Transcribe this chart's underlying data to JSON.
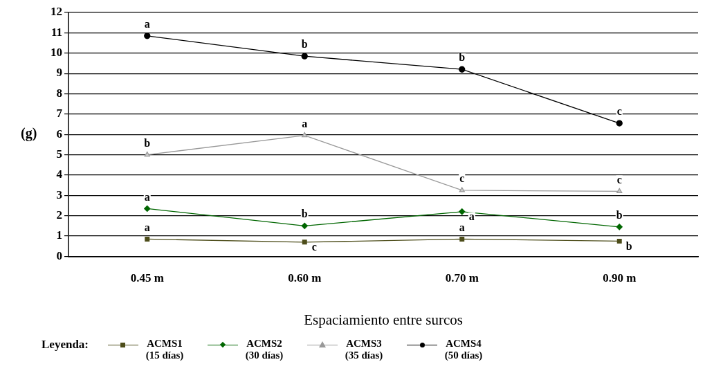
{
  "chart_data": {
    "type": "line",
    "xlabel": "Espaciamiento entre surcos",
    "ylabel": "(g)",
    "legend_title": "Leyenda:",
    "categories": [
      "0.45 m",
      "0.60 m",
      "0.70 m",
      "0.90 m"
    ],
    "series": [
      {
        "name": "ACMS1 (15 días)",
        "color": "#4d4d1a",
        "marker": "square",
        "values": [
          0.85,
          0.7,
          0.85,
          0.75
        ]
      },
      {
        "name": "ACMS2 (30 días)",
        "color": "#006600",
        "marker": "diamond",
        "values": [
          2.35,
          1.5,
          2.2,
          1.45
        ]
      },
      {
        "name": "ACMS3 (35 días)",
        "color": "#999999",
        "marker": "triangle",
        "values": [
          5.0,
          5.95,
          3.25,
          3.2
        ]
      },
      {
        "name": "ACMS4 (50 días)",
        "color": "#000000",
        "marker": "circle",
        "values": [
          10.85,
          9.85,
          9.2,
          6.55
        ]
      }
    ],
    "ylim": [
      0,
      12
    ],
    "yticks": [
      0,
      1,
      2,
      3,
      4,
      5,
      6,
      7,
      8,
      9,
      10,
      11,
      12
    ],
    "grid": "y",
    "legend": "bottom",
    "annotations": [
      {
        "text": "a",
        "x": "0.45 m",
        "y": 0.85
      },
      {
        "text": "c",
        "x": "0.60 m",
        "y": 0.7
      },
      {
        "text": "a",
        "x": "0.70 m",
        "y": 0.85
      },
      {
        "text": "b",
        "x": "0.90 m",
        "y": 0.75
      },
      {
        "text": "a",
        "x": "0.45 m",
        "y": 2.35
      },
      {
        "text": "b",
        "x": "0.60 m",
        "y": 1.5
      },
      {
        "text": "a",
        "x": "0.70 m",
        "y": 2.2
      },
      {
        "text": "b",
        "x": "0.90 m",
        "y": 1.45
      },
      {
        "text": "b",
        "x": "0.45 m",
        "y": 5.0
      },
      {
        "text": "a",
        "x": "0.60 m",
        "y": 5.95
      },
      {
        "text": "c",
        "x": "0.70 m",
        "y": 3.25
      },
      {
        "text": "c",
        "x": "0.90 m",
        "y": 3.2
      },
      {
        "text": "a",
        "x": "0.45 m",
        "y": 10.85
      },
      {
        "text": "b",
        "x": "0.60 m",
        "y": 9.85
      },
      {
        "text": "b",
        "x": "0.70 m",
        "y": 9.2
      },
      {
        "text": "c",
        "x": "0.90 m",
        "y": 6.55
      }
    ]
  }
}
